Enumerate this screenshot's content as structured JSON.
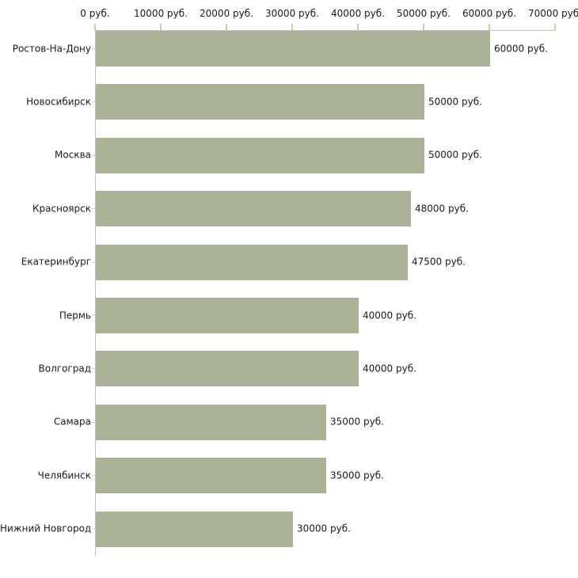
{
  "page": {
    "background": "#ffffff"
  },
  "chart_data": {
    "type": "bar",
    "orientation": "horizontal",
    "title": "",
    "unit": "руб.",
    "categories": [
      "Ростов-На-Дону",
      "Новосибирск",
      "Москва",
      "Красноярск",
      "Екатеринбург",
      "Пермь",
      "Волгоград",
      "Самара",
      "Челябинск",
      "Нижний Новгород"
    ],
    "values": [
      60000,
      50000,
      50000,
      48000,
      47500,
      40000,
      40000,
      35000,
      35000,
      30000
    ],
    "value_labels": [
      "60000 руб.",
      "50000 руб.",
      "50000 руб.",
      "48000 руб.",
      "47500 руб.",
      "40000 руб.",
      "40000 руб.",
      "35000 руб.",
      "35000 руб.",
      "30000 руб."
    ],
    "x_axis": {
      "position": "top",
      "min": 0,
      "max": 70000,
      "tick_interval": 10000,
      "tick_values": [
        0,
        10000,
        20000,
        30000,
        40000,
        50000,
        60000,
        70000
      ],
      "tick_labels": [
        "0 руб.",
        "10000 руб.",
        "20000 руб.",
        "30000 руб.",
        "40000 руб.",
        "50000 руб.",
        "60000 руб.",
        "70000 руб."
      ]
    },
    "legend": false,
    "grid": false,
    "colors": {
      "bar": "#aab298",
      "axis_line": "#c2c2c2",
      "axis_tick": "#cfcba4",
      "category_tick": "#d8d4b4",
      "text": "#1a1a1a",
      "background": "#ffffff"
    }
  }
}
